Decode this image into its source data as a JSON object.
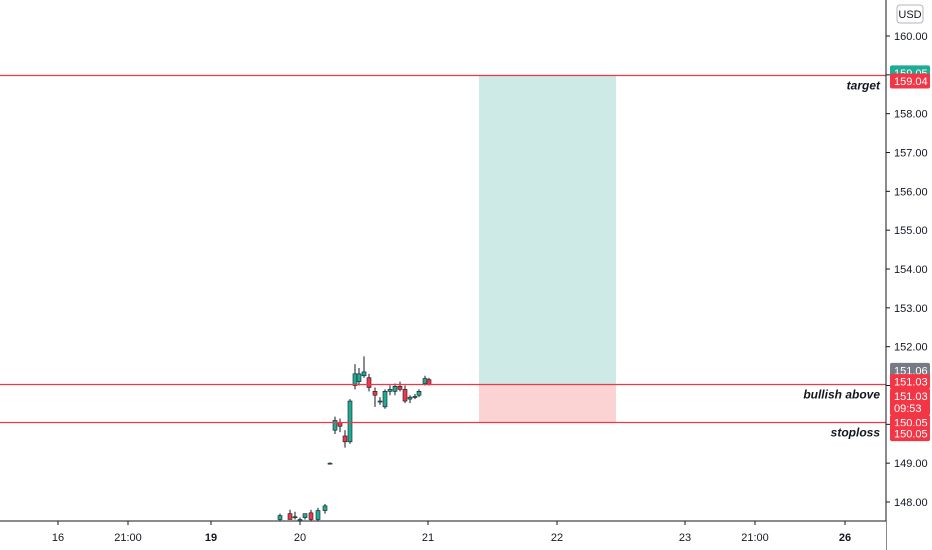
{
  "chart_data": {
    "type": "candlestick",
    "currency_label": "USD",
    "y_ticks": [
      148,
      149,
      150,
      151,
      152,
      153,
      154,
      155,
      156,
      157,
      158,
      159,
      160
    ],
    "y_tick_labels": [
      "148.00",
      "149.00",
      "150.00",
      "151.00",
      "152.00",
      "153.00",
      "154.00",
      "155.00",
      "156.00",
      "157.00",
      "158.00",
      "159.00",
      "160.00"
    ],
    "x_ticks": [
      {
        "label": "16",
        "bold": false
      },
      {
        "label": "21:00",
        "bold": false
      },
      {
        "label": "19",
        "bold": true
      },
      {
        "label": "20",
        "bold": false
      },
      {
        "label": "21",
        "bold": false
      },
      {
        "label": "22",
        "bold": false
      },
      {
        "label": "23",
        "bold": false
      },
      {
        "label": "21:00",
        "bold": false
      },
      {
        "label": "26",
        "bold": true
      }
    ],
    "horizontal_lines": [
      {
        "name": "target",
        "label": "target",
        "price": 159.0,
        "color": "#f23645"
      },
      {
        "name": "bullish-above",
        "label": "bullish above",
        "price": 151.03,
        "color": "#f23645"
      },
      {
        "name": "stoploss",
        "label": "stoploss",
        "price": 150.05,
        "color": "#f23645"
      }
    ],
    "position_tool": {
      "entry": 151.03,
      "target": 159.0,
      "stop": 150.05,
      "profit_color": "#cdeae6",
      "loss_color": "#fcd3d3"
    },
    "price_tags": [
      {
        "text": "159.05",
        "price": 159.05,
        "color": "#22ab94"
      },
      {
        "text": "159.04",
        "price": 158.84,
        "color": "#f23645"
      },
      {
        "text": "151.06",
        "price": 151.39,
        "color": "#787b86"
      },
      {
        "text": "151.03",
        "price": 151.1,
        "color": "#f23645"
      },
      {
        "text": "151.03",
        "price": 150.73,
        "color": "#f23645"
      },
      {
        "text": "09:53",
        "price": 150.42,
        "color": "#f23645"
      },
      {
        "text": "150.05",
        "price": 150.05,
        "color": "#f23645"
      },
      {
        "text": "150.05",
        "price": 149.76,
        "color": "#f23645"
      }
    ],
    "candles": [
      {
        "o": 147.55,
        "h": 147.7,
        "l": 147.45,
        "c": 147.65
      },
      {
        "o": 147.7,
        "h": 147.8,
        "l": 147.55,
        "c": 147.55
      },
      {
        "o": 147.62,
        "h": 147.75,
        "l": 147.55,
        "c": 147.62
      },
      {
        "o": 147.5,
        "h": 147.6,
        "l": 147.45,
        "c": 147.55
      },
      {
        "o": 147.6,
        "h": 147.7,
        "l": 147.55,
        "c": 147.7
      },
      {
        "o": 147.72,
        "h": 147.8,
        "l": 147.5,
        "c": 147.55
      },
      {
        "o": 147.55,
        "h": 147.85,
        "l": 147.5,
        "c": 147.78
      },
      {
        "o": 147.78,
        "h": 147.95,
        "l": 147.7,
        "c": 147.9
      },
      {
        "o": 149.0,
        "h": 149.02,
        "l": 148.98,
        "c": 149.0
      },
      {
        "o": 149.85,
        "h": 150.2,
        "l": 149.75,
        "c": 150.1
      },
      {
        "o": 150.05,
        "h": 150.15,
        "l": 149.8,
        "c": 149.95
      },
      {
        "o": 149.7,
        "h": 149.85,
        "l": 149.4,
        "c": 149.55
      },
      {
        "o": 149.55,
        "h": 150.65,
        "l": 149.5,
        "c": 150.6
      },
      {
        "o": 151.0,
        "h": 151.55,
        "l": 150.9,
        "c": 151.3
      },
      {
        "o": 151.1,
        "h": 151.45,
        "l": 151.0,
        "c": 151.3
      },
      {
        "o": 151.25,
        "h": 151.75,
        "l": 151.2,
        "c": 151.35
      },
      {
        "o": 151.2,
        "h": 151.3,
        "l": 150.85,
        "c": 150.95
      },
      {
        "o": 150.85,
        "h": 150.95,
        "l": 150.45,
        "c": 150.75
      },
      {
        "o": 150.6,
        "h": 150.7,
        "l": 150.5,
        "c": 150.6
      },
      {
        "o": 150.45,
        "h": 150.9,
        "l": 150.4,
        "c": 150.85
      },
      {
        "o": 150.85,
        "h": 151.0,
        "l": 150.75,
        "c": 150.9
      },
      {
        "o": 150.85,
        "h": 151.05,
        "l": 150.75,
        "c": 150.98
      },
      {
        "o": 150.98,
        "h": 151.1,
        "l": 150.85,
        "c": 150.9
      },
      {
        "o": 150.9,
        "h": 151.0,
        "l": 150.55,
        "c": 150.6
      },
      {
        "o": 150.65,
        "h": 150.75,
        "l": 150.55,
        "c": 150.7
      },
      {
        "o": 150.7,
        "h": 150.78,
        "l": 150.65,
        "c": 150.72
      },
      {
        "o": 150.75,
        "h": 150.9,
        "l": 150.7,
        "c": 150.85
      },
      {
        "o": 151.05,
        "h": 151.25,
        "l": 151.0,
        "c": 151.18
      },
      {
        "o": 151.15,
        "h": 151.2,
        "l": 151.0,
        "c": 151.03
      }
    ],
    "colors": {
      "up": "#22ab94",
      "down": "#f23645",
      "wick": "#131722"
    }
  }
}
